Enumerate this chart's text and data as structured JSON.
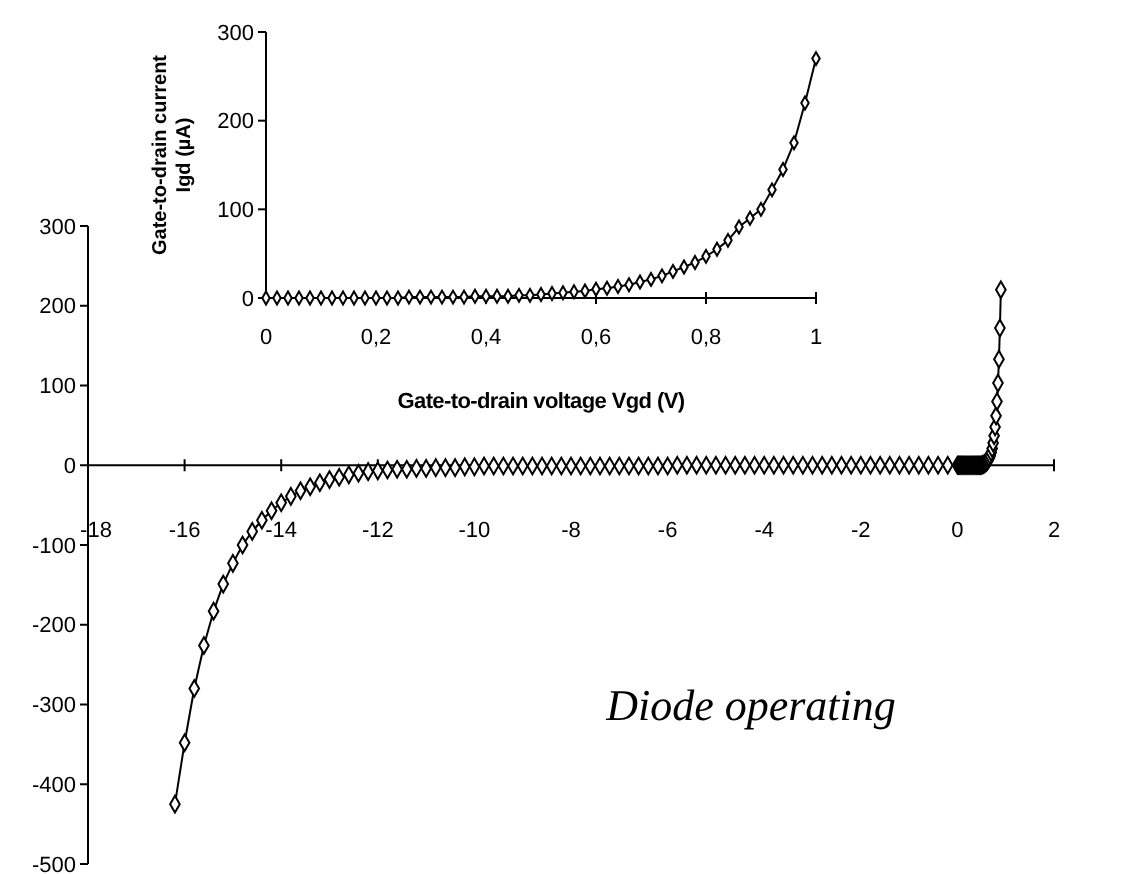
{
  "chart_data": [
    {
      "type": "line",
      "marker": "diamond",
      "xlim": [
        -18,
        2
      ],
      "ylim": [
        -500,
        300
      ],
      "xticks": [
        -18,
        -16,
        -14,
        -12,
        -10,
        -8,
        -6,
        -4,
        -2,
        0,
        2
      ],
      "yticks": [
        -500,
        -400,
        -300,
        -200,
        -100,
        0,
        100,
        200,
        300
      ],
      "annotations": [
        "Diode operating"
      ],
      "series": [
        {
          "color": "#000000",
          "x": [
            -16.2,
            -16.0,
            -15.8,
            -15.6,
            -15.4,
            -15.2,
            -15.0,
            -14.8,
            -14.6,
            -14.4,
            -14.2,
            -14.0,
            -13.8,
            -13.6,
            -13.4,
            -13.2,
            -13.0,
            -12.8,
            -12.6,
            -12.4,
            -12.2,
            -12.0,
            -11.8,
            -11.6,
            -11.4,
            -11.2,
            -11.0,
            -10.8,
            -10.6,
            -10.4,
            -10.2,
            -10.0,
            -9.8,
            -9.6,
            -9.4,
            -9.2,
            -9.0,
            -8.8,
            -8.6,
            -8.4,
            -8.2,
            -8.0,
            -7.8,
            -7.6,
            -7.4,
            -7.2,
            -7.0,
            -6.8,
            -6.6,
            -6.4,
            -6.2,
            -6.0,
            -5.8,
            -5.6,
            -5.4,
            -5.2,
            -5.0,
            -4.8,
            -4.6,
            -4.4,
            -4.2,
            -4.0,
            -3.8,
            -3.6,
            -3.4,
            -3.2,
            -3.0,
            -2.8,
            -2.6,
            -2.4,
            -2.2,
            -2.0,
            -1.8,
            -1.6,
            -1.4,
            -1.2,
            -1.0,
            -0.8,
            -0.6,
            -0.4,
            -0.2,
            0,
            0.02,
            0.04,
            0.06,
            0.08,
            0.1,
            0.12,
            0.14,
            0.16,
            0.18,
            0.2,
            0.22,
            0.24,
            0.26,
            0.28,
            0.3,
            0.32,
            0.34,
            0.36,
            0.38,
            0.4,
            0.42,
            0.44,
            0.46,
            0.48,
            0.5,
            0.52,
            0.54,
            0.56,
            0.58,
            0.6,
            0.62,
            0.64,
            0.66,
            0.68,
            0.7,
            0.72,
            0.74,
            0.76,
            0.78,
            0.8,
            0.82,
            0.84,
            0.86,
            0.88,
            0.9
          ],
          "values": [
            -425,
            -348,
            -280,
            -226,
            -183,
            -149,
            -123,
            -100,
            -83,
            -69,
            -57,
            -47,
            -39,
            -32,
            -27,
            -22,
            -18,
            -15,
            -12,
            -10,
            -8,
            -7,
            -6,
            -5,
            -5,
            -4,
            -4,
            -3,
            -3,
            -3,
            -2,
            -2,
            -1,
            -1,
            -1,
            -1,
            -1,
            -1,
            -1,
            -1,
            -1,
            -1,
            -1,
            -1,
            -1,
            -1,
            -1,
            -1,
            -1,
            -1,
            -1,
            -1,
            0,
            0,
            0,
            0,
            0,
            0,
            0,
            0,
            0,
            0,
            0,
            0,
            0,
            0,
            0,
            0,
            0,
            0,
            0,
            0,
            0,
            0,
            0,
            0,
            0,
            0,
            0,
            0,
            0,
            0,
            0,
            0,
            0,
            0,
            0,
            0,
            0,
            0,
            0,
            0,
            0,
            0,
            0,
            0,
            0,
            0,
            0,
            0,
            0,
            0,
            0,
            0,
            0,
            0,
            0,
            1,
            1,
            2,
            3,
            4,
            5,
            7,
            9,
            12,
            16,
            21,
            28,
            37,
            48,
            62,
            80,
            103,
            133,
            172,
            220
          ]
        }
      ]
    },
    {
      "type": "line",
      "marker": "diamond",
      "xlabel": "Gate-to-drain voltage Vgd (V)",
      "ylabel": "Gate-to-drain current\nIgd (µA)",
      "xlim": [
        0,
        1
      ],
      "ylim": [
        0,
        300
      ],
      "xticks": [
        0,
        {
          "value": 0.2,
          "label": "0,2"
        },
        {
          "value": 0.4,
          "label": "0,4"
        },
        {
          "value": 0.6,
          "label": "0,6"
        },
        {
          "value": 0.8,
          "label": "0,8"
        },
        1
      ],
      "yticks": [
        0,
        100,
        200,
        300
      ],
      "series": [
        {
          "color": "#000000",
          "x": [
            0,
            0.02,
            0.04,
            0.06,
            0.08,
            0.1,
            0.12,
            0.14,
            0.16,
            0.18,
            0.2,
            0.22,
            0.24,
            0.26,
            0.28,
            0.3,
            0.32,
            0.34,
            0.36,
            0.38,
            0.4,
            0.42,
            0.44,
            0.46,
            0.48,
            0.5,
            0.52,
            0.54,
            0.56,
            0.58,
            0.6,
            0.62,
            0.64,
            0.66,
            0.68,
            0.7,
            0.72,
            0.74,
            0.76,
            0.78,
            0.8,
            0.82,
            0.84,
            0.86,
            0.88,
            0.9,
            0.92,
            0.94,
            0.96,
            0.98,
            1.0
          ],
          "values": [
            0,
            0,
            0,
            0,
            0,
            0,
            0,
            0,
            0,
            0,
            0,
            0,
            0,
            1,
            1,
            1,
            1,
            1,
            1,
            2,
            2,
            2,
            2,
            3,
            3,
            4,
            5,
            6,
            7,
            8,
            10,
            11,
            13,
            15,
            18,
            21,
            25,
            30,
            35,
            40,
            47,
            55,
            65,
            80,
            90,
            100,
            122,
            145,
            175,
            220,
            270
          ]
        }
      ]
    }
  ]
}
